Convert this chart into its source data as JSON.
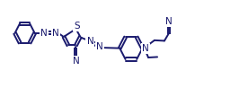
{
  "bg_color": "#ffffff",
  "bond_color": "#1a1a6e",
  "line_width": 1.4,
  "font_size": 7.5,
  "font_color": "#1a1a6e",
  "xlim": [
    0,
    10.5
  ],
  "ylim": [
    0,
    4.0
  ]
}
